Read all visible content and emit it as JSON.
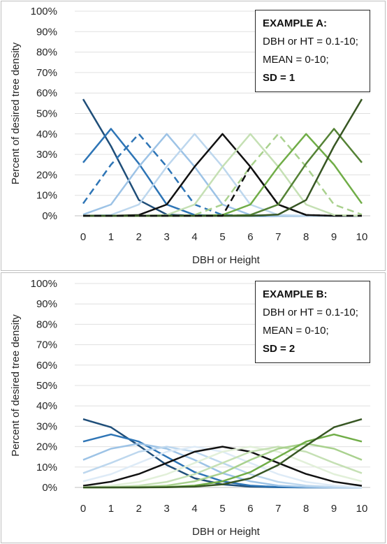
{
  "chart_data": [
    {
      "type": "line",
      "xlabel": "DBH or Height",
      "ylabel": "Percent of desired tree density",
      "ylim": [
        0,
        1
      ],
      "yticks": [
        "0%",
        "10%",
        "20%",
        "30%",
        "40%",
        "50%",
        "60%",
        "70%",
        "80%",
        "90%",
        "100%"
      ],
      "x": [
        0,
        1,
        2,
        3,
        4,
        5,
        6,
        7,
        8,
        9,
        10
      ],
      "annotation": [
        "EXAMPLE A:",
        "DBH or HT = 0.1-10;",
        "MEAN = 0-10;",
        "SD = 1"
      ],
      "series": [
        {
          "color": "#1f4e79",
          "dash": "",
          "values": [
            0.57,
            0.34,
            0.077,
            0.006,
            0,
            0,
            0,
            0,
            0,
            0,
            0
          ]
        },
        {
          "color": "#2e75b6",
          "dash": "",
          "values": [
            0.26,
            0.425,
            0.255,
            0.055,
            0.004,
            0,
            0,
            0,
            0,
            0,
            0
          ]
        },
        {
          "color": "#2e75b6",
          "dash": "10,6",
          "values": [
            0.06,
            0.25,
            0.4,
            0.24,
            0.055,
            0.004,
            0,
            0,
            0,
            0,
            0
          ]
        },
        {
          "color": "#9dc3e6",
          "dash": "",
          "values": [
            0.006,
            0.055,
            0.24,
            0.4,
            0.24,
            0.055,
            0.004,
            0,
            0,
            0,
            0
          ]
        },
        {
          "color": "#bdd7ee",
          "dash": "",
          "values": [
            0,
            0.004,
            0.055,
            0.24,
            0.4,
            0.24,
            0.055,
            0.004,
            0,
            0,
            0
          ]
        },
        {
          "color": "#111111",
          "dash": "",
          "values": [
            0,
            0,
            0.004,
            0.055,
            0.24,
            0.4,
            0.24,
            0.055,
            0.004,
            0,
            0
          ]
        },
        {
          "color": "#c5e0b4",
          "dash": "",
          "values": [
            0,
            0,
            0,
            0.004,
            0.055,
            0.24,
            0.4,
            0.24,
            0.055,
            0.004,
            0
          ]
        },
        {
          "color": "#a9d18e",
          "dash": "10,6",
          "values": [
            0,
            0,
            0,
            0,
            0.004,
            0.055,
            0.24,
            0.4,
            0.24,
            0.055,
            0.006
          ]
        },
        {
          "color": "#70ad47",
          "dash": "",
          "values": [
            0,
            0,
            0,
            0,
            0,
            0.004,
            0.055,
            0.24,
            0.4,
            0.25,
            0.06
          ]
        },
        {
          "color": "#548235",
          "dash": "",
          "values": [
            0,
            0,
            0,
            0,
            0,
            0,
            0.004,
            0.055,
            0.255,
            0.425,
            0.26
          ]
        },
        {
          "color": "#375623",
          "dash": "",
          "values": [
            0,
            0,
            0,
            0,
            0,
            0,
            0,
            0.006,
            0.077,
            0.34,
            0.57
          ]
        },
        {
          "color": "#111111",
          "dash": "10,6",
          "values": [
            0,
            0,
            0,
            0,
            0,
            0,
            0.24,
            0.055,
            0.004,
            0,
            0
          ]
        }
      ]
    },
    {
      "type": "line",
      "xlabel": "DBH or Height",
      "ylabel": "Percent of desired tree density",
      "ylim": [
        0,
        1
      ],
      "yticks": [
        "0%",
        "10%",
        "20%",
        "30%",
        "40%",
        "50%",
        "60%",
        "70%",
        "80%",
        "90%",
        "100%"
      ],
      "x": [
        0,
        1,
        2,
        3,
        4,
        5,
        6,
        7,
        8,
        9,
        10
      ],
      "annotation": [
        "EXAMPLE B:",
        "DBH or HT = 0.1-10;",
        "MEAN = 0-10;",
        "SD = 2"
      ],
      "series": [
        {
          "color": "#1f4e79",
          "dash": "",
          "values": [
            0.335,
            0.295,
            0.205,
            0.11,
            0.045,
            0.015,
            0.004,
            0.001,
            0,
            0,
            0
          ]
        },
        {
          "color": "#2e75b6",
          "dash": "",
          "values": [
            0.225,
            0.26,
            0.225,
            0.15,
            0.075,
            0.03,
            0.009,
            0.002,
            0,
            0,
            0
          ]
        },
        {
          "color": "#9dc3e6",
          "dash": "",
          "values": [
            0.135,
            0.19,
            0.215,
            0.19,
            0.135,
            0.07,
            0.03,
            0.009,
            0.002,
            0,
            0
          ]
        },
        {
          "color": "#bdd7ee",
          "dash": "",
          "values": [
            0.07,
            0.12,
            0.175,
            0.2,
            0.175,
            0.12,
            0.065,
            0.027,
            0.009,
            0.002,
            0
          ]
        },
        {
          "color": "#deebf7",
          "dash": "",
          "values": [
            0.03,
            0.065,
            0.12,
            0.175,
            0.2,
            0.175,
            0.12,
            0.065,
            0.027,
            0.009,
            0.002
          ]
        },
        {
          "color": "#111111",
          "dash": "",
          "values": [
            0.008,
            0.028,
            0.066,
            0.12,
            0.175,
            0.2,
            0.175,
            0.12,
            0.066,
            0.028,
            0.008
          ]
        },
        {
          "color": "#e2f0d9",
          "dash": "",
          "values": [
            0.002,
            0.009,
            0.027,
            0.065,
            0.12,
            0.175,
            0.2,
            0.175,
            0.12,
            0.065,
            0.03
          ]
        },
        {
          "color": "#c5e0b4",
          "dash": "",
          "values": [
            0,
            0.002,
            0.009,
            0.027,
            0.065,
            0.12,
            0.175,
            0.2,
            0.175,
            0.12,
            0.07
          ]
        },
        {
          "color": "#a9d18e",
          "dash": "",
          "values": [
            0,
            0,
            0.002,
            0.009,
            0.03,
            0.07,
            0.135,
            0.19,
            0.215,
            0.19,
            0.135
          ]
        },
        {
          "color": "#70ad47",
          "dash": "",
          "values": [
            0,
            0,
            0,
            0.002,
            0.009,
            0.03,
            0.075,
            0.15,
            0.225,
            0.26,
            0.225
          ]
        },
        {
          "color": "#375623",
          "dash": "",
          "values": [
            0,
            0,
            0,
            0.001,
            0.004,
            0.015,
            0.045,
            0.11,
            0.205,
            0.295,
            0.335
          ]
        }
      ]
    }
  ]
}
